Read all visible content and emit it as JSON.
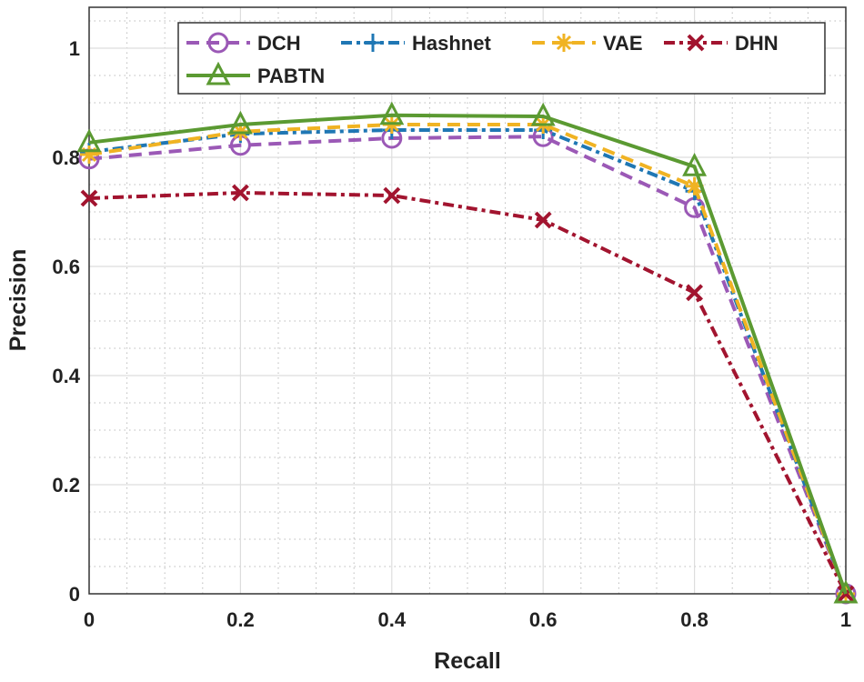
{
  "chart_data": {
    "type": "line",
    "title": "",
    "xlabel": "Recall",
    "ylabel": "Precision",
    "xlim": [
      0,
      1
    ],
    "ylim": [
      0,
      1.075
    ],
    "xticks": [
      "0",
      "0.2",
      "0.4",
      "0.6",
      "0.8",
      "1"
    ],
    "yticks": [
      "0",
      "0.2",
      "0.4",
      "0.6",
      "0.8",
      "1"
    ],
    "grid": true,
    "minor_grid": true,
    "legend_placement": "top",
    "x": [
      0,
      0.2,
      0.4,
      0.6,
      0.8,
      1
    ],
    "series": [
      {
        "name": "DCH",
        "values": [
          0.797,
          0.822,
          0.835,
          0.838,
          0.708,
          0
        ],
        "color": "#9b59b6",
        "marker": "circle",
        "dash": "dashed"
      },
      {
        "name": "Hashnet",
        "values": [
          0.81,
          0.843,
          0.85,
          0.85,
          0.738,
          0
        ],
        "color": "#1f77b4",
        "marker": "plus",
        "dash": "dashdot"
      },
      {
        "name": "VAE",
        "values": [
          0.805,
          0.847,
          0.86,
          0.86,
          0.747,
          0
        ],
        "color": "#f0b323",
        "marker": "asterisk",
        "dash": "dashed"
      },
      {
        "name": "DHN",
        "values": [
          0.725,
          0.735,
          0.73,
          0.685,
          0.552,
          0
        ],
        "color": "#a2142f",
        "marker": "x",
        "dash": "dashdot"
      },
      {
        "name": "PABTN",
        "values": [
          0.827,
          0.86,
          0.877,
          0.875,
          0.783,
          0
        ],
        "color": "#5b9a32",
        "marker": "triangle",
        "dash": "solid"
      }
    ]
  }
}
